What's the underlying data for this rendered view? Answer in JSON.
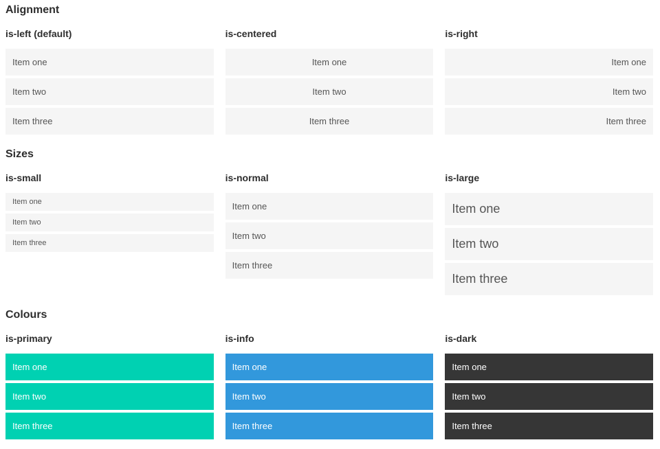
{
  "colors": {
    "page_background": "#ffffff",
    "heading_text": "#2d2d2d",
    "item_background": "#f5f5f5",
    "item_text": "#555555",
    "colored_item_text": "#ffffff",
    "primary": "#00d1b2",
    "info": "#3298dc",
    "dark": "#363636"
  },
  "sections": [
    {
      "title": "Alignment",
      "variants": [
        {
          "label": "is-left (default)",
          "modifier": "is-left",
          "items": [
            "Item one",
            "Item two",
            "Item three"
          ]
        },
        {
          "label": "is-centered",
          "modifier": "is-centered",
          "items": [
            "Item one",
            "Item two",
            "Item three"
          ]
        },
        {
          "label": "is-right",
          "modifier": "is-right",
          "items": [
            "Item one",
            "Item two",
            "Item three"
          ]
        }
      ]
    },
    {
      "title": "Sizes",
      "variants": [
        {
          "label": "is-small",
          "modifier": "is-small",
          "items": [
            "Item one",
            "Item two",
            "Item three"
          ]
        },
        {
          "label": "is-normal",
          "modifier": "is-normal",
          "items": [
            "Item one",
            "Item two",
            "Item three"
          ]
        },
        {
          "label": "is-large",
          "modifier": "is-large",
          "items": [
            "Item one",
            "Item two",
            "Item three"
          ]
        }
      ]
    },
    {
      "title": "Colours",
      "variants": [
        {
          "label": "is-primary",
          "modifier": "is-primary",
          "items": [
            "Item one",
            "Item two",
            "Item three"
          ]
        },
        {
          "label": "is-info",
          "modifier": "is-info",
          "items": [
            "Item one",
            "Item two",
            "Item three"
          ]
        },
        {
          "label": "is-dark",
          "modifier": "is-dark",
          "items": [
            "Item one",
            "Item two",
            "Item three"
          ]
        }
      ]
    }
  ]
}
